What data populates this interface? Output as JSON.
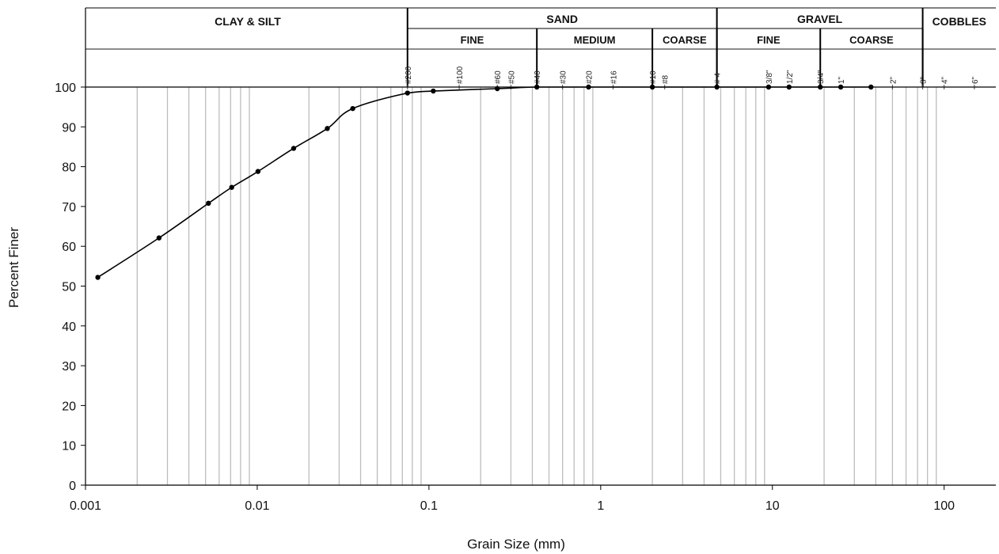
{
  "chart_data": {
    "type": "line",
    "title": "",
    "xlabel": "Grain Size (mm)",
    "ylabel": "Percent Finer",
    "x_scale": "log",
    "xlim": [
      0.001,
      200
    ],
    "ylim": [
      0,
      100
    ],
    "x_ticks": [
      {
        "value": 0.001,
        "label": "0.001"
      },
      {
        "value": 0.01,
        "label": "0.01"
      },
      {
        "value": 0.1,
        "label": "0.1"
      },
      {
        "value": 1,
        "label": "1"
      },
      {
        "value": 10,
        "label": "10"
      },
      {
        "value": 100,
        "label": "100"
      }
    ],
    "y_ticks": [
      0,
      10,
      20,
      30,
      40,
      50,
      60,
      70,
      80,
      90,
      100
    ],
    "grid": {
      "vertical_log_minor": true,
      "horizontal": false
    },
    "series": [
      {
        "name": "",
        "x": [
          0.00118,
          0.00268,
          0.0052,
          0.0071,
          0.0101,
          0.0163,
          0.0256,
          0.036,
          0.075,
          0.106,
          0.25,
          0.425,
          0.85,
          2.0,
          4.75,
          9.5,
          12.5,
          19.0,
          25.0,
          37.5
        ],
        "y": [
          52.2,
          62.1,
          70.8,
          74.8,
          78.8,
          84.6,
          89.6,
          94.6,
          98.5,
          99.0,
          99.6,
          100,
          100,
          100,
          100,
          100,
          100,
          100,
          100,
          100
        ]
      }
    ],
    "sieves": [
      {
        "label": "#200",
        "mm": 0.075
      },
      {
        "label": "#100",
        "mm": 0.15
      },
      {
        "label": "#60",
        "mm": 0.25
      },
      {
        "label": "#50",
        "mm": 0.3
      },
      {
        "label": "#40",
        "mm": 0.425
      },
      {
        "label": "#30",
        "mm": 0.6
      },
      {
        "label": "#20",
        "mm": 0.85
      },
      {
        "label": "#16",
        "mm": 1.18
      },
      {
        "label": "#10",
        "mm": 2.0
      },
      {
        "label": "#8",
        "mm": 2.36
      },
      {
        "label": "# 4",
        "mm": 4.75
      },
      {
        "label": "3/8\"",
        "mm": 9.5
      },
      {
        "label": "1/2\"",
        "mm": 12.5
      },
      {
        "label": "3/4\"",
        "mm": 19.0
      },
      {
        "label": "1\"",
        "mm": 25.0
      },
      {
        "label": "2\"",
        "mm": 50.0
      },
      {
        "label": "3\"",
        "mm": 75.0
      },
      {
        "label": "4\"",
        "mm": 100.0
      },
      {
        "label": "6\"",
        "mm": 150.0
      }
    ],
    "classification": {
      "categories": [
        {
          "label": "CLAY & SILT",
          "from_mm": 0.001,
          "to_mm": 0.075
        },
        {
          "label": "SAND",
          "from_mm": 0.075,
          "to_mm": 4.75
        },
        {
          "label": "GRAVEL",
          "from_mm": 4.75,
          "to_mm": 75.0
        },
        {
          "label": "COBBLES",
          "from_mm": 75.0,
          "to_mm": 200
        }
      ],
      "subcategories": [
        {
          "label": "FINE",
          "from_mm": 0.075,
          "to_mm": 0.425
        },
        {
          "label": "MEDIUM",
          "from_mm": 0.425,
          "to_mm": 2.0
        },
        {
          "label": "COARSE",
          "from_mm": 2.0,
          "to_mm": 4.75
        },
        {
          "label": "FINE",
          "from_mm": 4.75,
          "to_mm": 19.0
        },
        {
          "label": "COARSE",
          "from_mm": 19.0,
          "to_mm": 75.0
        }
      ]
    },
    "colors": {
      "curve": "#000000",
      "grid": "#bdbdbd",
      "frame": "#000000"
    }
  }
}
